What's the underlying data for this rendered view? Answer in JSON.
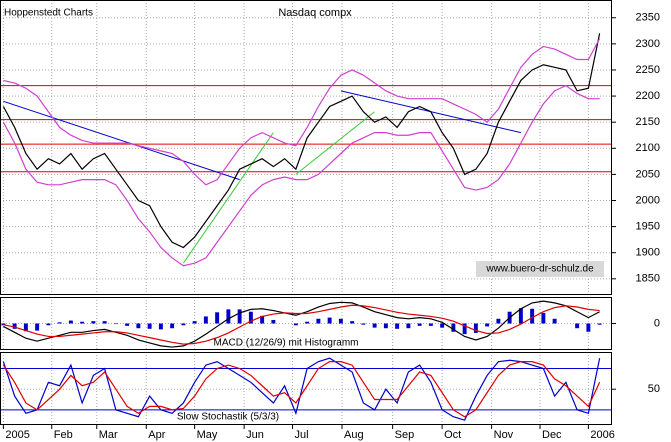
{
  "chart_data": [
    {
      "type": "line",
      "title": "Nasdaq compx",
      "source": "Hoppenstedt Charts",
      "watermark": "www.buero-dr-schulz.de",
      "x": [
        0,
        1,
        2,
        3,
        4,
        5,
        6,
        7,
        8,
        9,
        10,
        11,
        12,
        13,
        14,
        15,
        16,
        17,
        18,
        19,
        20,
        21,
        22,
        23,
        24,
        25,
        26,
        27,
        28,
        29,
        30,
        31,
        32,
        33,
        34,
        35,
        36,
        37,
        38,
        39,
        40,
        41,
        42,
        43,
        44,
        45,
        46,
        47,
        48,
        49,
        50,
        51,
        52,
        53
      ],
      "xlim": [
        -0.3,
        54.1
      ],
      "ylim": [
        1819,
        2384
      ],
      "yticks": [
        1850,
        1900,
        1950,
        2000,
        2050,
        2100,
        2150,
        2200,
        2250,
        2300,
        2350
      ],
      "grid": true,
      "series": [
        {
          "color": "#000000",
          "values": [
            2180,
            2140,
            2090,
            2060,
            2080,
            2070,
            2090,
            2060,
            2080,
            2090,
            2060,
            2030,
            2000,
            1990,
            1950,
            1920,
            1910,
            1930,
            1960,
            1990,
            2020,
            2060,
            2070,
            2080,
            2065,
            2080,
            2060,
            2120,
            2150,
            2180,
            2190,
            2200,
            2170,
            2150,
            2160,
            2140,
            2170,
            2180,
            2170,
            2130,
            2100,
            2050,
            2060,
            2090,
            2150,
            2190,
            2230,
            2250,
            2260,
            2255,
            2250,
            2210,
            2215,
            2320
          ]
        },
        {
          "color": "#d040d0",
          "values": [
            2230,
            2225,
            2215,
            2200,
            2170,
            2140,
            2125,
            2115,
            2110,
            2110,
            2110,
            2110,
            2105,
            2100,
            2095,
            2090,
            2075,
            2050,
            2030,
            2040,
            2070,
            2100,
            2120,
            2130,
            2120,
            2110,
            2105,
            2140,
            2180,
            2215,
            2240,
            2250,
            2240,
            2225,
            2210,
            2200,
            2195,
            2195,
            2195,
            2195,
            2185,
            2175,
            2165,
            2150,
            2175,
            2215,
            2255,
            2280,
            2295,
            2290,
            2280,
            2270,
            2270,
            2310
          ]
        },
        {
          "color": "#d040d0",
          "values": [
            2150,
            2110,
            2060,
            2035,
            2030,
            2030,
            2035,
            2040,
            2040,
            2040,
            2030,
            2000,
            1965,
            1940,
            1910,
            1890,
            1875,
            1880,
            1890,
            1920,
            1950,
            1980,
            2010,
            2030,
            2040,
            2045,
            2040,
            2040,
            2050,
            2070,
            2090,
            2110,
            2120,
            2130,
            2130,
            2125,
            2125,
            2130,
            2130,
            2095,
            2060,
            2025,
            2020,
            2025,
            2040,
            2070,
            2110,
            2150,
            2185,
            2210,
            2220,
            2205,
            2195,
            2195
          ]
        }
      ],
      "hlines": [
        2220,
        2155,
        2108,
        2055
      ],
      "hline_color": "#e00000",
      "trendlines": [
        {
          "color": "#0000cc",
          "x": [
            0,
            21
          ],
          "y": [
            2190,
            2040
          ]
        },
        {
          "color": "#0000cc",
          "x": [
            30,
            46
          ],
          "y": [
            2210,
            2130
          ]
        },
        {
          "color": "#33cc33",
          "x": [
            16,
            24
          ],
          "y": [
            1880,
            2130
          ]
        },
        {
          "color": "#33cc33",
          "x": [
            26,
            33
          ],
          "y": [
            2050,
            2170
          ]
        }
      ]
    },
    {
      "type": "combo",
      "title": "MACD (12/26/9) mit Histogramm",
      "x": [
        0,
        1,
        2,
        3,
        4,
        5,
        6,
        7,
        8,
        9,
        10,
        11,
        12,
        13,
        14,
        15,
        16,
        17,
        18,
        19,
        20,
        21,
        22,
        23,
        24,
        25,
        26,
        27,
        28,
        29,
        30,
        31,
        32,
        33,
        34,
        35,
        36,
        37,
        38,
        39,
        40,
        41,
        42,
        43,
        44,
        45,
        46,
        47,
        48,
        49,
        50,
        51,
        52,
        53
      ],
      "xlim": [
        -0.3,
        54.1
      ],
      "ylim": [
        -45,
        45
      ],
      "yticks": [
        0
      ],
      "grid": true,
      "series": [
        {
          "kind": "bar",
          "color": "#0000cc",
          "values": [
            -3,
            -9,
            -13,
            -12,
            -3,
            2,
            5,
            3,
            4,
            4,
            -1,
            -4,
            -8,
            -9,
            -10,
            -8,
            -3,
            4,
            12,
            19,
            24,
            24,
            20,
            13,
            6,
            0,
            -3,
            3,
            8,
            10,
            8,
            4,
            -2,
            -7,
            -8,
            -9,
            -8,
            -4,
            -4,
            -7,
            -14,
            -18,
            -16,
            -5,
            8,
            20,
            26,
            25,
            18,
            8,
            0,
            -8,
            -14,
            -2
          ]
        },
        {
          "color": "#000000",
          "values": [
            -5,
            -15,
            -25,
            -30,
            -25,
            -20,
            -15,
            -15,
            -12,
            -10,
            -15,
            -20,
            -28,
            -33,
            -38,
            -40,
            -38,
            -30,
            -18,
            -5,
            8,
            18,
            24,
            25,
            22,
            18,
            14,
            20,
            28,
            34,
            36,
            35,
            28,
            20,
            15,
            10,
            8,
            10,
            8,
            2,
            -10,
            -22,
            -28,
            -22,
            -8,
            10,
            25,
            35,
            38,
            35,
            30,
            20,
            10,
            20
          ]
        },
        {
          "color": "#e00000",
          "values": [
            -2,
            -6,
            -12,
            -18,
            -22,
            -22,
            -20,
            -18,
            -16,
            -14,
            -14,
            -16,
            -20,
            -24,
            -28,
            -32,
            -35,
            -34,
            -30,
            -24,
            -16,
            -6,
            4,
            12,
            16,
            18,
            17,
            17,
            20,
            24,
            28,
            31,
            30,
            27,
            23,
            19,
            16,
            14,
            12,
            9,
            4,
            -4,
            -12,
            -17,
            -16,
            -10,
            -1,
            10,
            20,
            27,
            30,
            28,
            24,
            22
          ]
        }
      ]
    },
    {
      "type": "line",
      "title": "Slow Stochastik (5/3/3)",
      "x": [
        0,
        1,
        2,
        3,
        4,
        5,
        6,
        7,
        8,
        9,
        10,
        11,
        12,
        13,
        14,
        15,
        16,
        17,
        18,
        19,
        20,
        21,
        22,
        23,
        24,
        25,
        26,
        27,
        28,
        29,
        30,
        31,
        32,
        33,
        34,
        35,
        36,
        37,
        38,
        39,
        40,
        41,
        42,
        43,
        44,
        45,
        46,
        47,
        48,
        49,
        50,
        51,
        52,
        53
      ],
      "xlim": [
        -0.3,
        54.1
      ],
      "ylim": [
        -2,
        104
      ],
      "yticks": [
        50
      ],
      "grid": true,
      "xticks": [
        {
          "value": 0,
          "label": "2005"
        },
        {
          "value": 4.3,
          "label": "Feb"
        },
        {
          "value": 8.3,
          "label": "Mar"
        },
        {
          "value": 12.7,
          "label": "Apr"
        },
        {
          "value": 17,
          "label": "May"
        },
        {
          "value": 21.4,
          "label": "Jun"
        },
        {
          "value": 25.7,
          "label": "Jul"
        },
        {
          "value": 30.1,
          "label": "Aug"
        },
        {
          "value": 34.6,
          "label": "Sep"
        },
        {
          "value": 39,
          "label": "Oct"
        },
        {
          "value": 43.4,
          "label": "Nov"
        },
        {
          "value": 47.7,
          "label": "Dec"
        },
        {
          "value": 52,
          "label": "2006"
        }
      ],
      "series": [
        {
          "color": "#0000cc",
          "values": [
            90,
            40,
            15,
            20,
            60,
            55,
            85,
            30,
            70,
            80,
            20,
            15,
            10,
            40,
            20,
            15,
            30,
            60,
            85,
            90,
            80,
            70,
            60,
            45,
            30,
            55,
            15,
            80,
            90,
            95,
            85,
            75,
            30,
            20,
            50,
            30,
            75,
            85,
            60,
            20,
            10,
            5,
            40,
            70,
            90,
            92,
            90,
            85,
            80,
            40,
            60,
            20,
            15,
            95
          ]
        },
        {
          "color": "#e00000",
          "values": [
            85,
            60,
            30,
            20,
            35,
            50,
            70,
            55,
            60,
            75,
            50,
            25,
            15,
            25,
            25,
            20,
            22,
            40,
            65,
            80,
            85,
            80,
            70,
            55,
            40,
            45,
            30,
            55,
            80,
            90,
            90,
            85,
            60,
            35,
            35,
            35,
            55,
            75,
            70,
            45,
            20,
            10,
            20,
            45,
            70,
            85,
            90,
            90,
            85,
            65,
            55,
            40,
            25,
            60
          ]
        }
      ],
      "hlines": [
        80,
        20
      ],
      "hline_color": "#0000cc"
    }
  ]
}
